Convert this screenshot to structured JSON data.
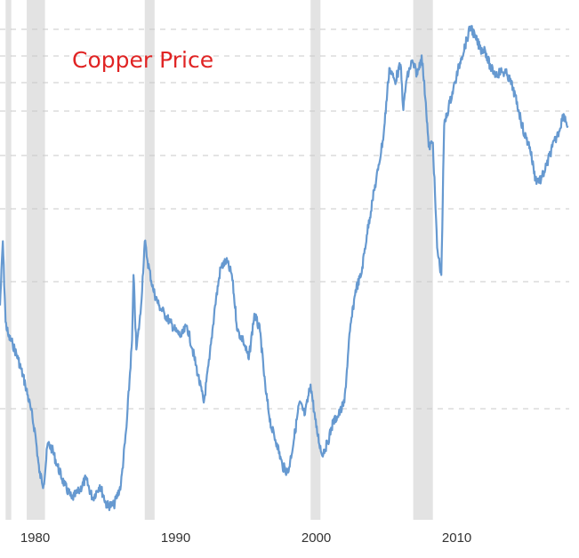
{
  "chart_data": {
    "type": "line",
    "title": "Copper Price",
    "xlabel": "",
    "ylabel": "",
    "xlim": [
      1977.5,
      2018
    ],
    "ylim": [
      0.7,
      5.2
    ],
    "y_scale": "log",
    "grid": true,
    "x_ticks": [
      1980,
      1990,
      2000,
      2010
    ],
    "x_tick_labels": [
      "1980",
      "1990",
      "2000",
      "2010"
    ],
    "recessions": [
      [
        1977.9,
        1978.3
      ],
      [
        1979.4,
        1980.7
      ],
      [
        1987.8,
        1988.5
      ],
      [
        1999.6,
        2000.3
      ],
      [
        2006.9,
        2008.3
      ]
    ],
    "series": [
      {
        "x": [
          1977.5,
          1977.7,
          1977.9,
          1978.1,
          1978.4,
          1978.8,
          1979.3,
          1979.7,
          1980.0,
          1980.3,
          1980.6,
          1980.9,
          1981.2,
          1981.6,
          1982.1,
          1982.6,
          1983.1,
          1983.6,
          1984.1,
          1984.6,
          1985.1,
          1985.6,
          1986.1,
          1986.5,
          1986.9,
          1987.0,
          1987.2,
          1987.5,
          1987.8,
          1988.0,
          1988.4,
          1988.8,
          1989.2,
          1989.6,
          1990.0,
          1990.4,
          1990.8,
          1991.2,
          1991.6,
          1992.0,
          1992.4,
          1992.8,
          1993.2,
          1993.6,
          1994.0,
          1994.4,
          1994.8,
          1995.2,
          1995.6,
          1996.0,
          1996.4,
          1996.8,
          1997.2,
          1997.6,
          1998.0,
          1998.4,
          1998.8,
          1999.2,
          1999.6,
          2000.0,
          2000.4,
          2000.8,
          2001.2,
          2001.6,
          2002.0,
          2002.4,
          2002.8,
          2003.2,
          2003.6,
          2004.0,
          2004.4,
          2004.8,
          2005.2,
          2005.6,
          2006.0,
          2006.2,
          2006.4,
          2006.8,
          2007.2,
          2007.5,
          2007.8,
          2008.0,
          2008.3,
          2008.6,
          2008.9,
          2009.1,
          2009.5,
          2009.9,
          2010.3,
          2010.7,
          2011.0,
          2011.3,
          2011.7,
          2012.0,
          2012.4,
          2012.8,
          2013.2,
          2013.6,
          2014.0,
          2014.4,
          2014.8,
          2015.2,
          2015.6,
          2016.0,
          2016.4,
          2016.8,
          2017.2,
          2017.6,
          2017.9
        ],
        "values": [
          1.6,
          2.05,
          1.5,
          1.42,
          1.38,
          1.3,
          1.18,
          1.07,
          0.98,
          0.84,
          0.8,
          0.94,
          0.92,
          0.86,
          0.8,
          0.76,
          0.78,
          0.82,
          0.76,
          0.8,
          0.74,
          0.74,
          0.8,
          1.0,
          1.4,
          1.8,
          1.35,
          1.55,
          2.05,
          1.9,
          1.7,
          1.6,
          1.55,
          1.5,
          1.45,
          1.42,
          1.48,
          1.35,
          1.22,
          1.1,
          1.3,
          1.6,
          1.85,
          1.9,
          1.8,
          1.45,
          1.4,
          1.3,
          1.55,
          1.45,
          1.15,
          1.0,
          0.94,
          0.86,
          0.84,
          0.95,
          1.1,
          1.05,
          1.18,
          1.0,
          0.9,
          0.94,
          1.02,
          1.05,
          1.1,
          1.45,
          1.7,
          1.8,
          2.1,
          2.4,
          2.7,
          3.1,
          4.0,
          3.8,
          4.05,
          3.4,
          3.8,
          4.1,
          3.9,
          4.2,
          3.5,
          2.95,
          3.0,
          2.0,
          1.8,
          3.2,
          3.5,
          3.8,
          4.15,
          4.45,
          4.7,
          4.5,
          4.3,
          4.3,
          4.0,
          3.9,
          3.95,
          3.9,
          3.7,
          3.4,
          3.1,
          2.95,
          2.6,
          2.6,
          2.75,
          2.95,
          3.1,
          3.35,
          3.2
        ]
      }
    ]
  },
  "colors": {
    "line": "#6699d0",
    "recession": "#e3e3e3",
    "grid": "#c8c8c8",
    "title": "#e02424",
    "tick": "#333333"
  }
}
